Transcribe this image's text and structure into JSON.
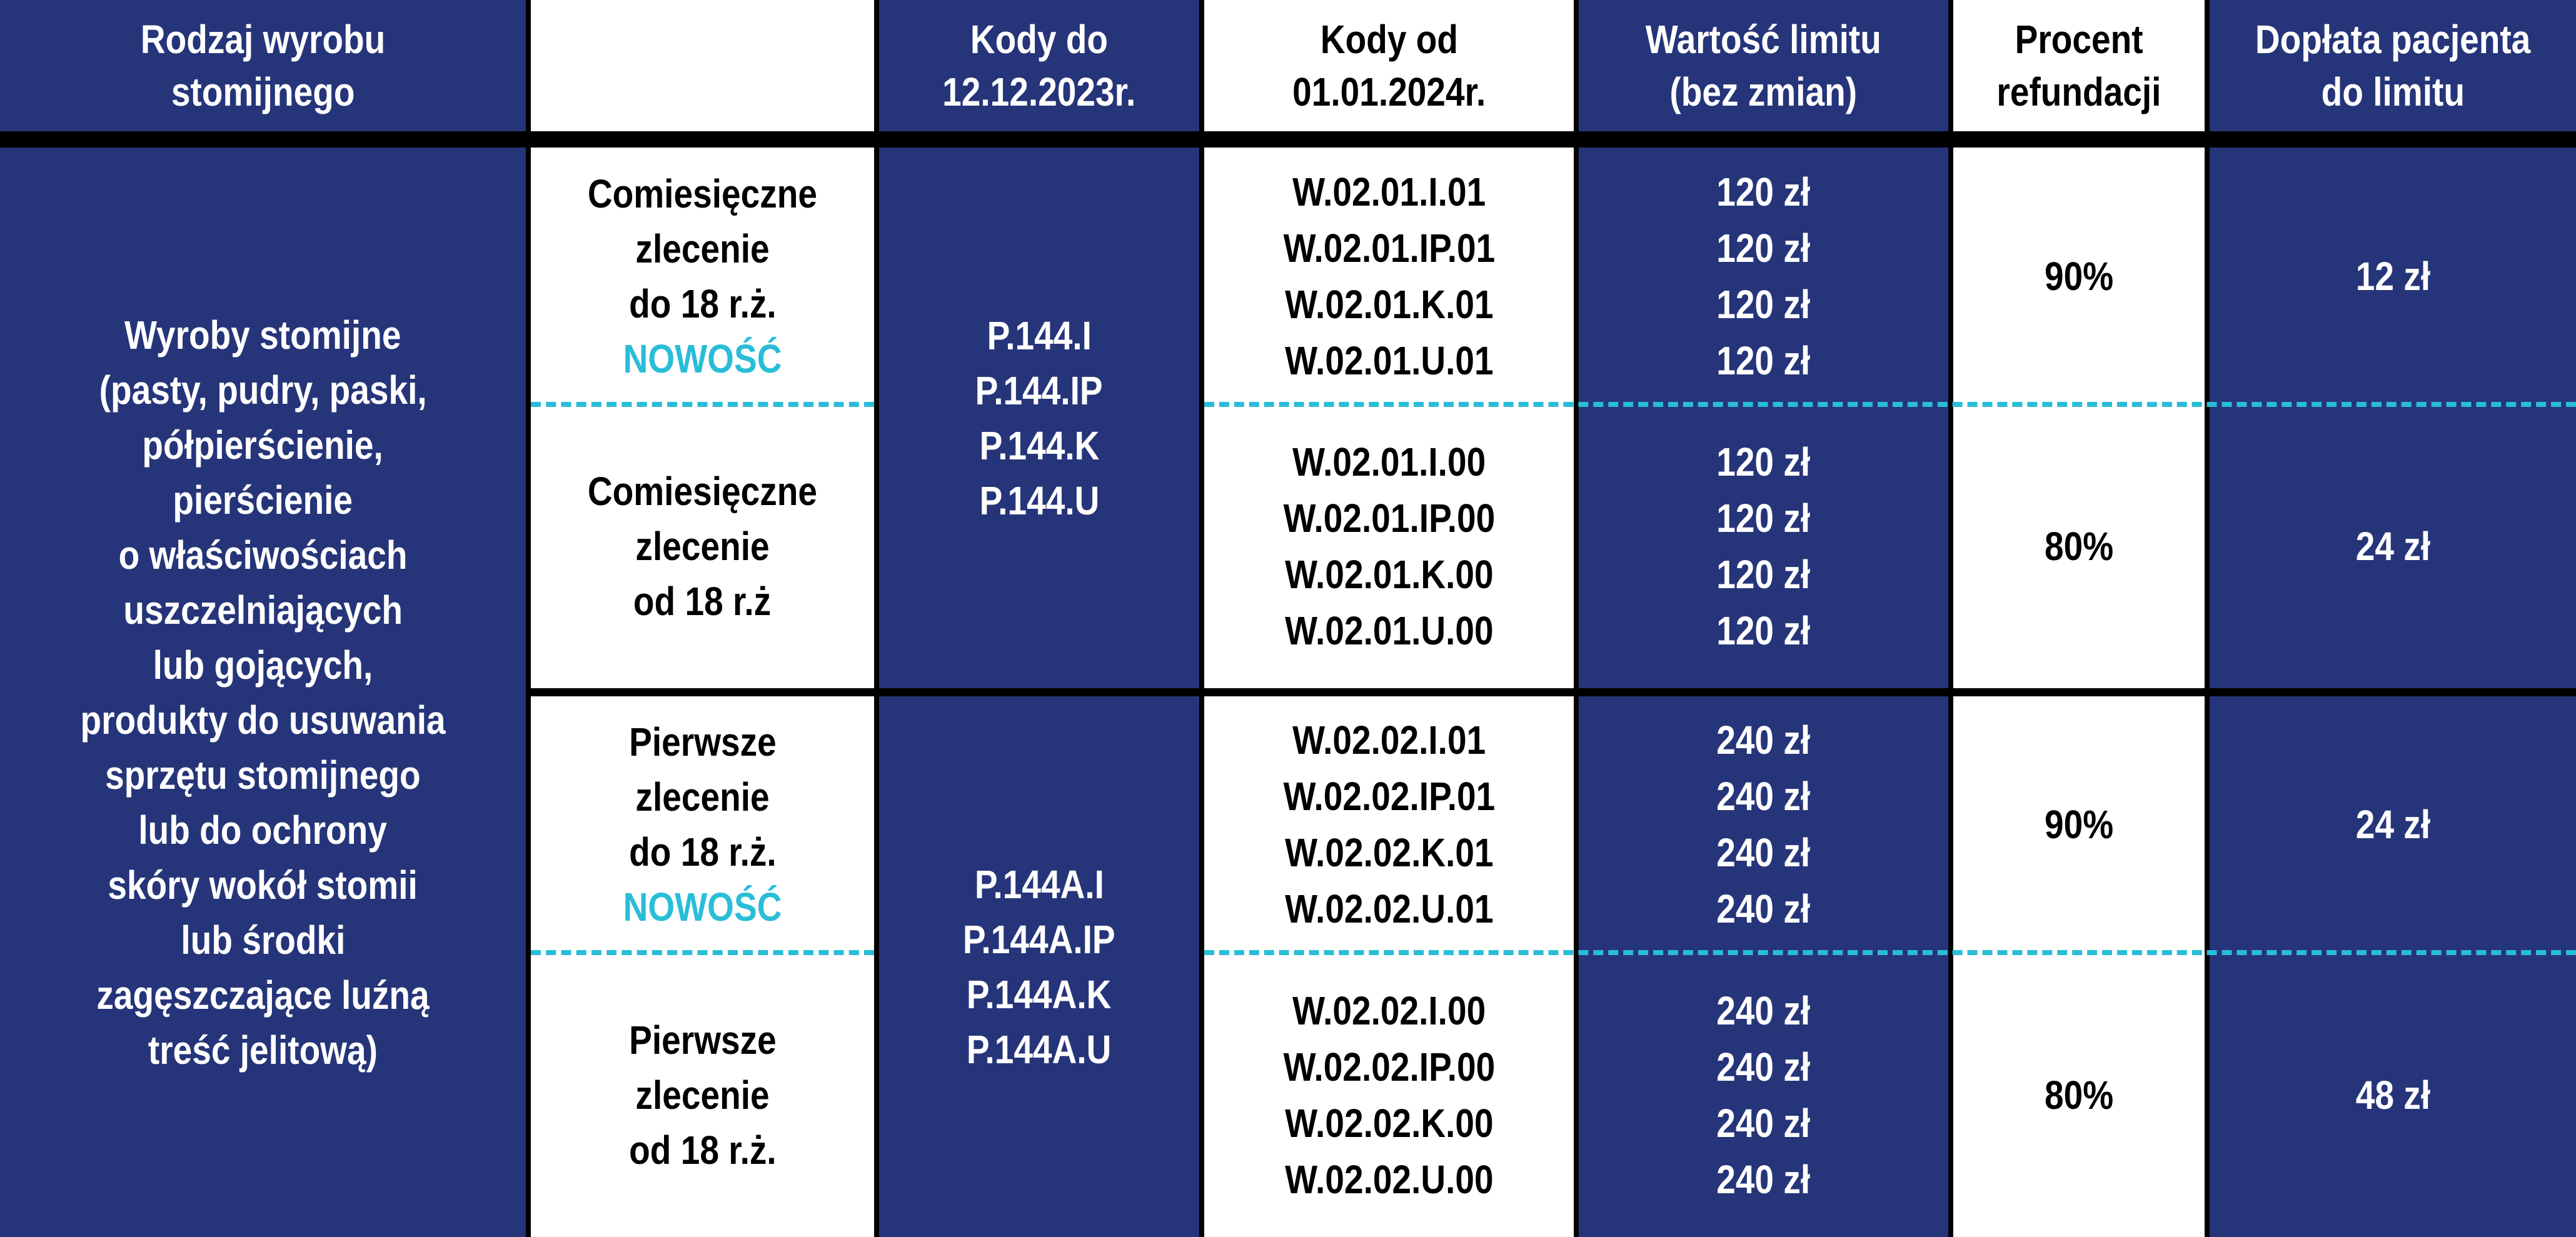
{
  "colors": {
    "blue": "#263579",
    "accent": "#29BDD8",
    "black": "#000000",
    "white": "#FFFFFF"
  },
  "header": [
    [
      "Rodzaj wyrobu",
      "stomijnego"
    ],
    [],
    [
      "Kody do",
      "12.12.2023r."
    ],
    [
      "Kody od",
      "01.01.2024r."
    ],
    [
      "Wartość limitu",
      "(bez zmian)"
    ],
    [
      "Procent",
      "refundacji"
    ],
    [
      "Dopłata pacjenta",
      "do limitu"
    ]
  ],
  "product_type": [
    "Wyroby stomijne",
    "(pasty, pudry, paski,",
    "półpierścienie,",
    "pierścienie",
    "o właściwościach",
    "uszczelniających",
    "lub gojących,",
    "produkty do usuwania",
    "sprzętu stomijnego",
    "lub do ochrony",
    "skóry wokół stomii",
    "lub środki",
    "zagęszczające luźną",
    "treść jelitową)"
  ],
  "groups": [
    {
      "old_codes": [
        "P.144.I",
        "P.144.IP",
        "P.144.K",
        "P.144.U"
      ],
      "rows": [
        {
          "order": [
            "Comiesięczne",
            "zlecenie",
            "do 18 r.ż."
          ],
          "badge": "NOWOŚĆ",
          "new_codes": [
            "W.02.01.I.01",
            "W.02.01.IP.01",
            "W.02.01.K.01",
            "W.02.01.U.01"
          ],
          "limits": [
            "120 zł",
            "120 zł",
            "120 zł",
            "120 zł"
          ],
          "percent": "90%",
          "copay": "12 zł"
        },
        {
          "order": [
            "Comiesięczne",
            "zlecenie",
            "od 18 r.ż"
          ],
          "new_codes": [
            "W.02.01.I.00",
            "W.02.01.IP.00",
            "W.02.01.K.00",
            "W.02.01.U.00"
          ],
          "limits": [
            "120 zł",
            "120 zł",
            "120 zł",
            "120 zł"
          ],
          "percent": "80%",
          "copay": "24 zł"
        }
      ]
    },
    {
      "old_codes": [
        "P.144A.I",
        "P.144A.IP",
        "P.144A.K",
        "P.144A.U"
      ],
      "rows": [
        {
          "order": [
            "Pierwsze",
            "zlecenie",
            "do 18 r.ż."
          ],
          "badge": "NOWOŚĆ",
          "new_codes": [
            "W.02.02.I.01",
            "W.02.02.IP.01",
            "W.02.02.K.01",
            "W.02.02.U.01"
          ],
          "limits": [
            "240 zł",
            "240 zł",
            "240 zł",
            "240 zł"
          ],
          "percent": "90%",
          "copay": "24 zł"
        },
        {
          "order": [
            "Pierwsze",
            "zlecenie",
            "od 18 r.ż."
          ],
          "new_codes": [
            "W.02.02.I.00",
            "W.02.02.IP.00",
            "W.02.02.K.00",
            "W.02.02.U.00"
          ],
          "limits": [
            "240 zł",
            "240 zł",
            "240 zł",
            "240 zł"
          ],
          "percent": "80%",
          "copay": "48 zł"
        }
      ]
    }
  ]
}
